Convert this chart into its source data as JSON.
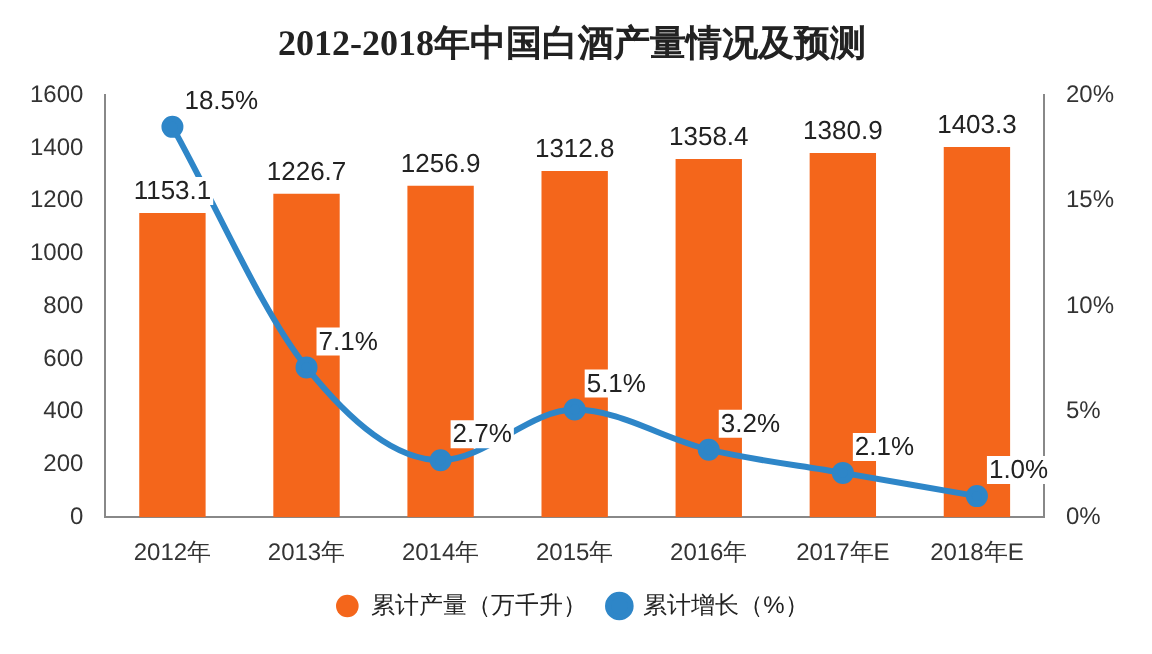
{
  "chart_data": {
    "type": "bar",
    "title": "2012-2018年中国白酒产量情况及预测",
    "categories": [
      "2012年",
      "2013年",
      "2014年",
      "2015年",
      "2016年",
      "2017年E",
      "2018年E"
    ],
    "series": [
      {
        "name": "累计产量（万千升）",
        "color": "#f4661b",
        "values": [
          1153.1,
          1226.7,
          1256.9,
          1312.8,
          1358.4,
          1380.9,
          1403.3
        ],
        "value_labels": [
          "1153.1",
          "1226.7",
          "1256.9",
          "1312.8",
          "1358.4",
          "1380.9",
          "1403.3"
        ]
      },
      {
        "name": "累计增长（%）",
        "type": "line",
        "axis": "y2",
        "color": "#2e86c8",
        "marker": "circle",
        "values": [
          18.5,
          7.1,
          2.7,
          5.1,
          3.2,
          2.1,
          1.0
        ],
        "value_labels": [
          "18.5%",
          "7.1%",
          "2.7%",
          "5.1%",
          "3.2%",
          "2.1%",
          "1.0%"
        ]
      }
    ],
    "ylim": [
      0,
      1600
    ],
    "yticks": [
      0,
      200,
      400,
      600,
      800,
      1000,
      1200,
      1400,
      1600
    ],
    "y2lim": [
      0,
      20
    ],
    "y2ticks": [
      {
        "value": 0,
        "label": "0%"
      },
      {
        "value": 5,
        "label": "5%"
      },
      {
        "value": 10,
        "label": "10%"
      },
      {
        "value": 15,
        "label": "15%"
      },
      {
        "value": 20,
        "label": "20%"
      }
    ],
    "grid": false,
    "legend": "bottom"
  }
}
